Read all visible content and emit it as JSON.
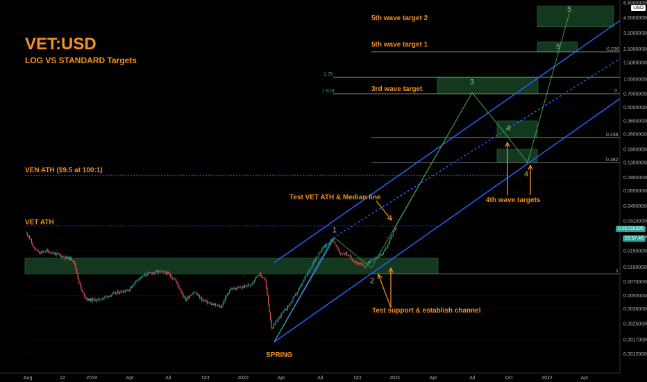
{
  "header": {
    "title": "VET:USD",
    "subtitle": "LOG VS STANDARD Targets"
  },
  "annotations": {
    "ven_ath": "VEN ATH ($9.5 at 100:1)",
    "vet_ath": "VET ATH",
    "test_ath": "Test VET ATH & Median line",
    "test_support": "Test support & establish channel",
    "spring": "SPRING",
    "wave4_targets": "4th wave targets",
    "wave5_target2": "5th wave target 2",
    "wave5_target1": "5th wave target 1",
    "wave3_target": "3rd wave target"
  },
  "level_labels": {
    "fib_175": "1.75",
    "fib_1618": "1.618",
    "lvl_m0236": "-0.236",
    "lvl_0": "0",
    "lvl_0236": "0.236",
    "lvl_0382": "0.382",
    "lvl_1": "1"
  },
  "wave_labels": [
    "1",
    "2",
    "3",
    "4",
    "4",
    "5",
    "5"
  ],
  "price_tags": {
    "current": "0.02728395",
    "countdown": "23:57:46",
    "currency": "USD"
  },
  "colors": {
    "accent": "#f5921e",
    "channel": "#2962ff",
    "up": "#26a69a",
    "zone": "#1b4a2a",
    "wave_line": "#4caf50",
    "price_tag": "#26a69a"
  },
  "chart_data": {
    "type": "candlestick",
    "y_scale": "log",
    "ylim": [
      0.001,
      6.5
    ],
    "y_ticks": [
      "6.50000000",
      "4.50000000",
      "3.10000000",
      "2.10000000",
      "1.50000000",
      "1.00000000",
      "0.70000000",
      "0.50000000",
      "0.36000000",
      "0.26000000",
      "0.18000000",
      "0.13000000",
      "0.09000000",
      "0.06500000",
      "0.04500000",
      "0.03100000",
      "0.02100000",
      "0.01500000",
      "0.01000000",
      "0.00700000",
      "0.00500000",
      "0.00360000",
      "0.00250000",
      "0.00170000",
      "0.00120000"
    ],
    "y_tick_values": [
      6.5,
      4.5,
      3.1,
      2.1,
      1.5,
      1.0,
      0.7,
      0.5,
      0.36,
      0.26,
      0.18,
      0.13,
      0.09,
      0.065,
      0.045,
      0.031,
      0.021,
      0.015,
      0.01,
      0.007,
      0.005,
      0.0036,
      0.0025,
      0.0017,
      0.0012
    ],
    "x_ticks": [
      "Aug",
      "22",
      "2019",
      "Apr",
      "Jul",
      "Oct",
      "2020",
      "Apr",
      "Jul",
      "Oct",
      "2021",
      "Apr",
      "Jul",
      "Oct",
      "2022",
      "Apr"
    ],
    "price_path_dates": [
      "2018-07-23",
      "2018-07-28",
      "2018-08-10",
      "2018-08-25",
      "2018-09-10",
      "2018-10-20",
      "2018-11-15",
      "2018-12-05",
      "2018-12-20",
      "2019-01-15",
      "2019-02-10",
      "2019-03-10",
      "2019-04-01",
      "2019-04-20",
      "2019-05-15",
      "2019-06-10",
      "2019-06-28",
      "2019-07-20",
      "2019-08-15",
      "2019-09-05",
      "2019-09-25",
      "2019-10-20",
      "2019-11-10",
      "2019-12-01",
      "2019-12-25",
      "2020-01-20",
      "2020-02-10",
      "2020-02-25",
      "2020-03-13",
      "2020-04-01",
      "2020-04-25",
      "2020-05-20",
      "2020-06-10",
      "2020-06-25",
      "2020-07-15",
      "2020-08-08",
      "2020-08-25",
      "2020-09-10",
      "2020-09-25",
      "2020-10-10",
      "2020-10-25",
      "2020-11-10",
      "2020-11-25",
      "2020-12-10",
      "2020-12-25",
      "2021-01-05",
      "2021-01-12"
    ],
    "price_path_values": [
      0.023,
      0.022,
      0.016,
      0.014,
      0.015,
      0.013,
      0.012,
      0.0055,
      0.0045,
      0.0045,
      0.005,
      0.0055,
      0.0058,
      0.0075,
      0.0085,
      0.009,
      0.0088,
      0.0075,
      0.0045,
      0.0055,
      0.0045,
      0.004,
      0.0038,
      0.0058,
      0.006,
      0.0065,
      0.0085,
      0.0075,
      0.0022,
      0.003,
      0.004,
      0.006,
      0.009,
      0.012,
      0.016,
      0.02,
      0.014,
      0.014,
      0.012,
      0.011,
      0.01,
      0.012,
      0.013,
      0.014,
      0.019,
      0.025,
      0.0272
    ],
    "horizontal_levels": [
      {
        "label": "VEN ATH ($9.5 at 100:1)",
        "value": 0.095,
        "style": "dotted"
      },
      {
        "label": "VET ATH",
        "value": 0.0275,
        "style": "dotted"
      },
      {
        "label": "1.75",
        "value": 1.05
      },
      {
        "label": "1.618",
        "value": 0.7
      },
      {
        "label": "-0.236",
        "value": 1.95
      },
      {
        "label": "0",
        "value": 0.7
      },
      {
        "label": "0.236",
        "value": 0.24
      },
      {
        "label": "0.382",
        "value": 0.13
      },
      {
        "label": "1",
        "value": 0.0085
      }
    ],
    "current_price": 0.02728395
  }
}
